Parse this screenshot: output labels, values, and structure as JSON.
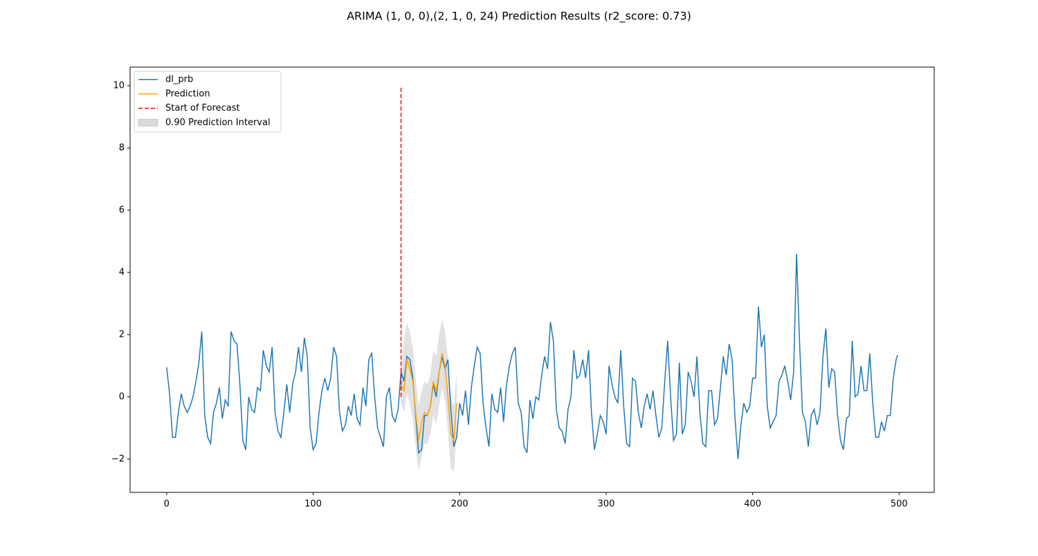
{
  "chart_data": {
    "type": "line",
    "title": "ARIMA (1, 0, 0),(2, 1, 0, 24) Prediction Results (r2_score: 0.73)",
    "xlim": [
      -24.95,
      523.95
    ],
    "ylim": [
      -3.07,
      10.6
    ],
    "xticks": [
      0,
      100,
      200,
      300,
      400,
      500
    ],
    "yticks": [
      {
        "value": -2,
        "label": "−2"
      },
      0,
      2,
      4,
      6,
      8,
      10
    ],
    "legend": "upper left",
    "series": [
      {
        "name": "dl_prb",
        "color": "#1f77b4",
        "x": [
          0,
          2,
          4,
          6,
          8,
          10,
          12,
          14,
          16,
          18,
          20,
          22,
          24,
          26,
          28,
          30,
          32,
          34,
          36,
          38,
          40,
          42,
          44,
          46,
          48,
          50,
          52,
          54,
          56,
          58,
          60,
          62,
          64,
          66,
          68,
          70,
          72,
          74,
          76,
          78,
          80,
          82,
          84,
          86,
          88,
          90,
          92,
          94,
          96,
          98,
          100,
          102,
          104,
          106,
          108,
          110,
          112,
          114,
          116,
          118,
          120,
          122,
          124,
          126,
          128,
          130,
          132,
          134,
          136,
          138,
          140,
          142,
          144,
          146,
          148,
          150,
          152,
          154,
          156,
          158,
          160,
          162,
          164,
          166,
          168,
          170,
          172,
          174,
          176,
          178,
          180,
          182,
          184,
          186,
          188,
          190,
          192,
          194,
          196,
          198,
          200,
          202,
          204,
          206,
          208,
          210,
          212,
          214,
          216,
          218,
          220,
          222,
          224,
          226,
          228,
          230,
          232,
          234,
          236,
          238,
          240,
          242,
          244,
          246,
          248,
          250,
          252,
          254,
          256,
          258,
          260,
          262,
          264,
          266,
          268,
          270,
          272,
          274,
          276,
          278,
          280,
          282,
          284,
          286,
          288,
          290,
          292,
          294,
          296,
          298,
          300,
          302,
          304,
          306,
          308,
          310,
          312,
          314,
          316,
          318,
          320,
          322,
          324,
          326,
          328,
          330,
          332,
          334,
          336,
          338,
          340,
          342,
          344,
          346,
          348,
          350,
          352,
          354,
          356,
          358,
          360,
          362,
          364,
          366,
          368,
          370,
          372,
          374,
          376,
          378,
          380,
          382,
          384,
          386,
          388,
          390,
          392,
          394,
          396,
          398,
          400,
          402,
          404,
          406,
          408,
          410,
          412,
          414,
          416,
          418,
          420,
          422,
          424,
          426,
          428,
          430,
          432,
          434,
          436,
          438,
          440,
          442,
          444,
          446,
          448,
          450,
          452,
          454,
          456,
          458,
          460,
          462,
          464,
          466,
          468,
          470,
          472,
          474,
          476,
          478,
          480,
          482,
          484,
          486,
          488,
          490,
          492,
          494,
          496,
          498,
          499
        ],
        "values": [
          0.95,
          0.1,
          -1.3,
          -1.3,
          -0.5,
          0.1,
          -0.3,
          -0.5,
          -0.3,
          0.0,
          0.5,
          1.1,
          2.1,
          -0.6,
          -1.3,
          -1.5,
          -0.5,
          -0.2,
          0.3,
          -0.7,
          -0.1,
          -0.3,
          2.1,
          1.8,
          1.7,
          0.4,
          -1.4,
          -1.7,
          0.0,
          -0.4,
          -0.5,
          0.3,
          0.2,
          1.5,
          1.0,
          0.8,
          1.6,
          -0.5,
          -1.1,
          -1.3,
          -0.5,
          0.4,
          -0.5,
          0.4,
          0.8,
          1.6,
          0.8,
          1.9,
          1.3,
          -1.0,
          -1.7,
          -1.5,
          -0.5,
          0.2,
          0.6,
          0.2,
          0.6,
          1.6,
          1.3,
          -0.5,
          -1.1,
          -0.9,
          -0.3,
          -0.6,
          0.1,
          -0.7,
          -0.9,
          0.3,
          -0.3,
          1.2,
          1.4,
          0.0,
          -1.0,
          -1.3,
          -1.6,
          0.0,
          0.3,
          -0.6,
          -0.8,
          -0.4,
          0.8,
          0.5,
          1.3,
          1.2,
          0.6,
          -0.6,
          -1.8,
          -1.7,
          -0.6,
          -0.6,
          -0.3,
          0.4,
          0.0,
          0.8,
          1.3,
          0.9,
          1.2,
          -0.4,
          -1.6,
          -1.3,
          -0.2,
          -0.6,
          0.2,
          -0.9,
          0.3,
          1.0,
          1.6,
          1.4,
          -0.2,
          -1.0,
          -1.6,
          0.1,
          -0.4,
          -0.5,
          0.3,
          -0.8,
          0.4,
          1.0,
          1.4,
          1.6,
          -0.2,
          -0.5,
          -1.6,
          -1.8,
          -0.1,
          -0.7,
          0.0,
          -0.1,
          0.7,
          1.3,
          0.9,
          2.4,
          1.8,
          -0.4,
          -1.0,
          -1.1,
          -1.5,
          -0.4,
          0.0,
          1.5,
          0.6,
          0.7,
          1.2,
          0.6,
          1.5,
          -0.5,
          -1.7,
          -1.2,
          -0.6,
          -0.8,
          -1.2,
          1.0,
          0.4,
          0.0,
          -0.2,
          1.5,
          -0.3,
          -1.5,
          -1.6,
          0.6,
          0.5,
          -0.5,
          -1.0,
          -0.3,
          0.1,
          -0.4,
          0.2,
          -0.6,
          -1.3,
          -1.0,
          0.5,
          1.8,
          0.0,
          -1.4,
          -1.2,
          1.1,
          -1.2,
          -0.9,
          0.8,
          0.5,
          0.0,
          1.3,
          -0.5,
          -1.5,
          -1.6,
          0.2,
          0.2,
          -0.9,
          -0.7,
          0.3,
          1.3,
          0.7,
          1.7,
          1.2,
          -0.7,
          -2.0,
          -0.9,
          -0.2,
          -0.5,
          -0.3,
          0.6,
          0.6,
          2.9,
          1.6,
          2.0,
          -0.3,
          -1.0,
          -0.8,
          -0.6,
          0.5,
          0.7,
          1.0,
          0.5,
          -0.1,
          0.8,
          4.6,
          1.8,
          -0.5,
          -0.8,
          -1.6,
          -0.6,
          -0.4,
          -0.9,
          -0.5,
          1.3,
          2.2,
          0.3,
          0.9,
          0.8,
          -0.6,
          -1.4,
          -1.7,
          -0.7,
          -0.6,
          1.8,
          0.0,
          0.1,
          1.0,
          0.2,
          0.2,
          1.4,
          -0.2,
          -1.3,
          -1.3,
          -0.8,
          -1.1,
          -0.6,
          -0.6,
          0.6,
          1.2,
          1.35
        ]
      },
      {
        "name": "Prediction",
        "color": "orange",
        "x": [
          160,
          162,
          164,
          166,
          168,
          170,
          172,
          174,
          176,
          178,
          180,
          182,
          184,
          186,
          188,
          190,
          192,
          194,
          196,
          198
        ],
        "values": [
          0.4,
          0.2,
          1.2,
          0.9,
          0.5,
          -0.5,
          -1.4,
          -0.8,
          -0.5,
          -0.6,
          -0.3,
          0.5,
          0.2,
          0.8,
          1.4,
          1.0,
          0.0,
          -1.2,
          -1.4,
          -0.2
        ]
      }
    ],
    "forecast_start": {
      "name": "Start of Forecast",
      "color": "red",
      "x": 160,
      "ymin": 0,
      "ymax": 10
    },
    "interval": {
      "name": "0.90 Prediction Interval",
      "color": "#d9d9d9",
      "x": [
        160,
        162,
        164,
        166,
        168,
        170,
        172,
        174,
        176,
        178,
        180,
        182,
        184,
        186,
        188,
        190,
        192,
        194,
        196,
        198
      ],
      "lower": [
        -0.2,
        -0.5,
        0.1,
        -0.2,
        -0.7,
        -1.6,
        -2.4,
        -1.9,
        -1.5,
        -1.5,
        -1.2,
        -0.6,
        -0.9,
        -0.3,
        0.3,
        -0.1,
        -1.1,
        -2.3,
        -2.4,
        -1.2
      ],
      "upper": [
        1.0,
        1.8,
        2.4,
        2.1,
        1.6,
        0.6,
        -0.3,
        0.2,
        0.5,
        0.4,
        0.7,
        1.5,
        1.3,
        2.0,
        2.5,
        2.1,
        1.2,
        0.0,
        -0.3,
        0.8
      ]
    }
  }
}
